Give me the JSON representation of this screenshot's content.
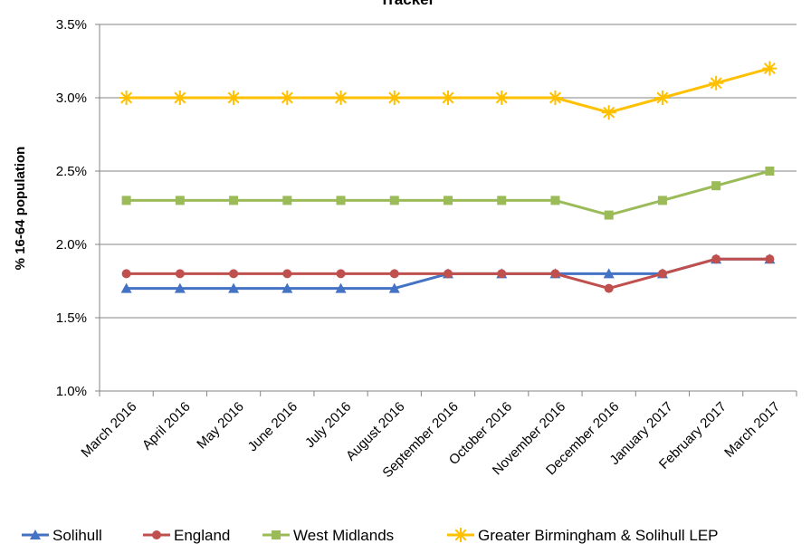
{
  "chart_data": {
    "type": "line",
    "title": "Tracker",
    "ylabel": "% 16-64 population",
    "xlabel": "",
    "ylim": [
      1.0,
      3.5
    ],
    "yticks": [
      "1.0%",
      "1.5%",
      "2.0%",
      "2.5%",
      "3.0%",
      "3.5%"
    ],
    "ytick_values": [
      1.0,
      1.5,
      2.0,
      2.5,
      3.0,
      3.5
    ],
    "grid": "horizontal",
    "legend_position": "bottom",
    "categories": [
      "March 2016",
      "April 2016",
      "May 2016",
      "June 2016",
      "July 2016",
      "August 2016",
      "September 2016",
      "October 2016",
      "November 2016",
      "December 2016",
      "January 2017",
      "February 2017",
      "March 2017"
    ],
    "series": [
      {
        "name": "Solihull",
        "color": "#4472C4",
        "marker": "triangle",
        "values": [
          1.7,
          1.7,
          1.7,
          1.7,
          1.7,
          1.7,
          1.8,
          1.8,
          1.8,
          1.8,
          1.8,
          1.9,
          1.9
        ]
      },
      {
        "name": "England",
        "color": "#C0504D",
        "marker": "circle",
        "values": [
          1.8,
          1.8,
          1.8,
          1.8,
          1.8,
          1.8,
          1.8,
          1.8,
          1.8,
          1.7,
          1.8,
          1.9,
          1.9
        ]
      },
      {
        "name": "West Midlands",
        "color": "#9BBB59",
        "marker": "square",
        "values": [
          2.3,
          2.3,
          2.3,
          2.3,
          2.3,
          2.3,
          2.3,
          2.3,
          2.3,
          2.2,
          2.3,
          2.4,
          2.5
        ]
      },
      {
        "name": "Greater Birmingham & Solihull LEP",
        "color": "#FFC000",
        "marker": "star",
        "values": [
          3.0,
          3.0,
          3.0,
          3.0,
          3.0,
          3.0,
          3.0,
          3.0,
          3.0,
          2.9,
          3.0,
          3.1,
          3.2
        ]
      }
    ]
  }
}
